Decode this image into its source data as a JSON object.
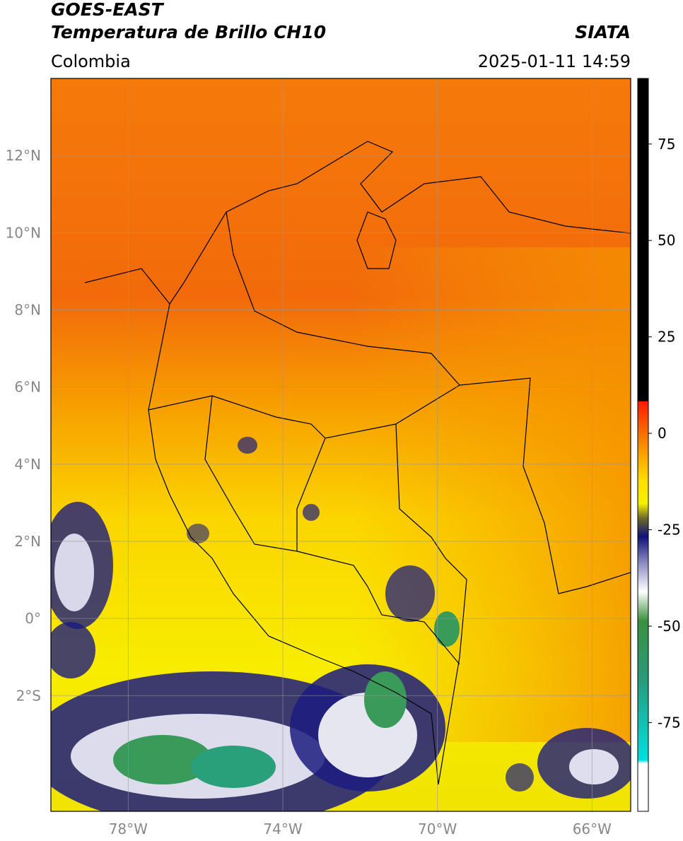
{
  "header": {
    "title_line1": "GOES-EAST",
    "title_line2": "Temperatura de Brillo CH10",
    "subtitle": "Colombia",
    "source": "SIATA",
    "timestamp": "2025-01-11 14:59"
  },
  "map": {
    "lonlim": [
      -80,
      -65
    ],
    "latlim": [
      -5,
      14
    ],
    "lon_ticks": [
      {
        "value": -78,
        "label": "78°W"
      },
      {
        "value": -74,
        "label": "74°W"
      },
      {
        "value": -70,
        "label": "70°W"
      },
      {
        "value": -66,
        "label": "66°W"
      }
    ],
    "lat_ticks": [
      {
        "value": 12,
        "label": "12°N"
      },
      {
        "value": 10,
        "label": "10°N"
      },
      {
        "value": 8,
        "label": "8°N"
      },
      {
        "value": 6,
        "label": "6°N"
      },
      {
        "value": 4,
        "label": "4°N"
      },
      {
        "value": 2,
        "label": "2°N"
      },
      {
        "value": 0,
        "label": "0°"
      },
      {
        "value": -2,
        "label": "2°S"
      }
    ]
  },
  "colorbar": {
    "range": [
      -98,
      92
    ],
    "ticks": [
      75,
      50,
      25,
      0,
      -25,
      -50,
      -75
    ]
  }
}
